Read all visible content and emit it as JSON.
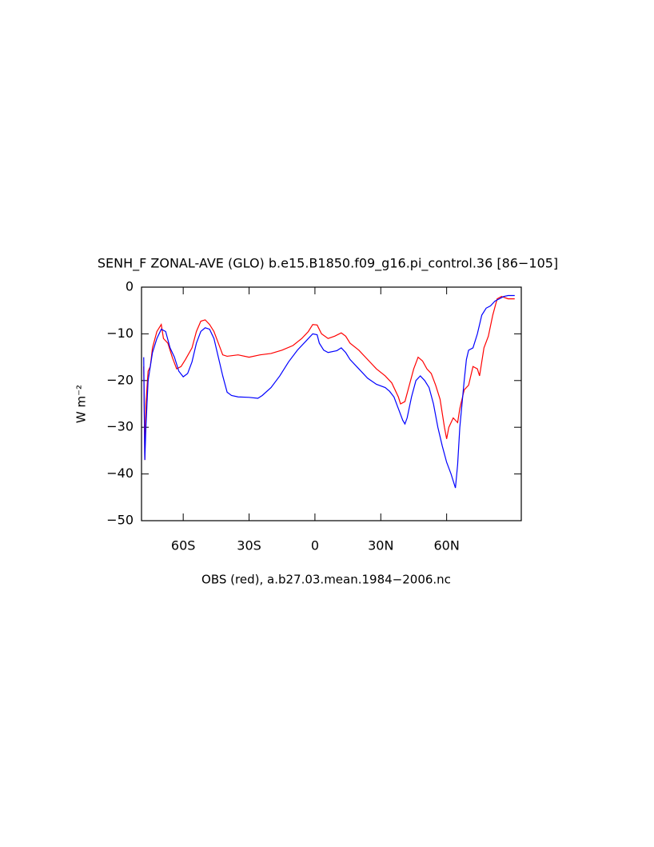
{
  "chart_data": {
    "type": "line",
    "title": "SENH_F ZONAL-AVE (GLO) b.e15.B1850.f09_g16.pi_control.36 [86−105]",
    "y_label": "W m⁻²",
    "x_label": "OBS (red), a.b27.03.mean.1984−2006.nc",
    "xlim": [
      -79,
      94
    ],
    "ylim": [
      -50,
      0
    ],
    "xticks": [
      {
        "value": -60,
        "label": "60S"
      },
      {
        "value": -30,
        "label": "30S"
      },
      0,
      {
        "value": 30,
        "label": "30N"
      },
      {
        "value": 60,
        "label": "60N"
      }
    ],
    "yticks": [
      {
        "value": -50,
        "label": "−50"
      },
      {
        "value": -40,
        "label": "−40"
      },
      {
        "value": -30,
        "label": "−30"
      },
      {
        "value": -20,
        "label": "−20"
      },
      {
        "value": -10,
        "label": "−10"
      },
      0
    ],
    "series": [
      {
        "color": "#ff0000",
        "x": [
          -78,
          -77.5,
          -77,
          -76,
          -75,
          -74,
          -72,
          -70,
          -69,
          -67,
          -65,
          -63,
          -61,
          -59,
          -56,
          -54,
          -52,
          -50,
          -48,
          -46,
          -44,
          -42,
          -40,
          -35,
          -30,
          -25,
          -20,
          -15,
          -10,
          -6,
          -3,
          -1,
          1,
          3,
          6,
          9,
          12,
          14,
          16,
          20,
          24,
          28,
          32,
          35,
          38,
          39,
          41,
          43,
          45,
          47,
          49,
          51,
          53,
          55,
          57,
          59,
          60,
          61,
          63,
          65,
          66,
          68,
          70,
          72,
          74,
          75,
          77,
          79,
          81,
          83,
          85,
          88,
          91
        ],
        "values": [
          -17,
          -37,
          -25,
          -18,
          -17,
          -13,
          -9.5,
          -8,
          -11,
          -12,
          -15,
          -17.5,
          -17,
          -15.5,
          -13,
          -9.5,
          -7.3,
          -7,
          -8,
          -9.5,
          -12,
          -14.5,
          -14.8,
          -14.5,
          -15,
          -14.5,
          -14.2,
          -13.5,
          -12.5,
          -11,
          -9.5,
          -8,
          -8.1,
          -10,
          -11,
          -10.5,
          -9.8,
          -10.5,
          -12,
          -13.5,
          -15.5,
          -17.5,
          -19,
          -20.5,
          -23.5,
          -25,
          -24.5,
          -21,
          -17.5,
          -15,
          -15.8,
          -17.5,
          -18.5,
          -21,
          -24,
          -30,
          -32.5,
          -30,
          -28,
          -29,
          -26,
          -22,
          -21,
          -17,
          -17.5,
          -19,
          -13,
          -10.5,
          -6,
          -2.5,
          -2,
          -2.5,
          -2.5
        ]
      },
      {
        "color": "#0000ff",
        "x": [
          -78,
          -77.5,
          -77,
          -76,
          -74,
          -72,
          -70,
          -68,
          -66,
          -64,
          -62,
          -60,
          -58,
          -56,
          -54,
          -52,
          -50,
          -48,
          -46,
          -44,
          -42,
          -40,
          -38,
          -35,
          -30,
          -26,
          -24,
          -20,
          -16,
          -12,
          -8,
          -4,
          -1,
          1,
          2,
          4,
          6,
          10,
          12,
          14,
          16,
          20,
          24,
          28,
          32,
          34,
          36,
          38,
          40,
          41,
          42,
          44,
          46,
          48,
          50,
          52,
          54,
          56,
          58,
          60,
          62,
          64,
          65,
          66,
          68,
          69,
          70,
          72,
          74,
          76,
          78,
          80,
          82,
          84,
          86,
          88,
          91
        ],
        "values": [
          -15,
          -37,
          -30,
          -20,
          -14,
          -11,
          -9,
          -9.5,
          -13,
          -15,
          -18,
          -19.2,
          -18.5,
          -16,
          -12,
          -9.5,
          -8.7,
          -9,
          -11,
          -15,
          -19,
          -22.5,
          -23.2,
          -23.5,
          -23.6,
          -23.8,
          -23.2,
          -21.5,
          -19,
          -16,
          -13.5,
          -11.5,
          -10,
          -10.2,
          -12,
          -13.5,
          -14,
          -13.6,
          -13,
          -14,
          -15.5,
          -17.5,
          -19.5,
          -20.8,
          -21.5,
          -22.3,
          -23.5,
          -26,
          -28.5,
          -29.3,
          -28,
          -23.5,
          -20,
          -19,
          -20,
          -21.5,
          -25,
          -30,
          -34,
          -37.5,
          -40,
          -43,
          -38,
          -30,
          -20,
          -15.5,
          -13.5,
          -13,
          -10,
          -6,
          -4.5,
          -4,
          -3,
          -2.5,
          -2,
          -1.8,
          -1.8
        ]
      }
    ]
  }
}
